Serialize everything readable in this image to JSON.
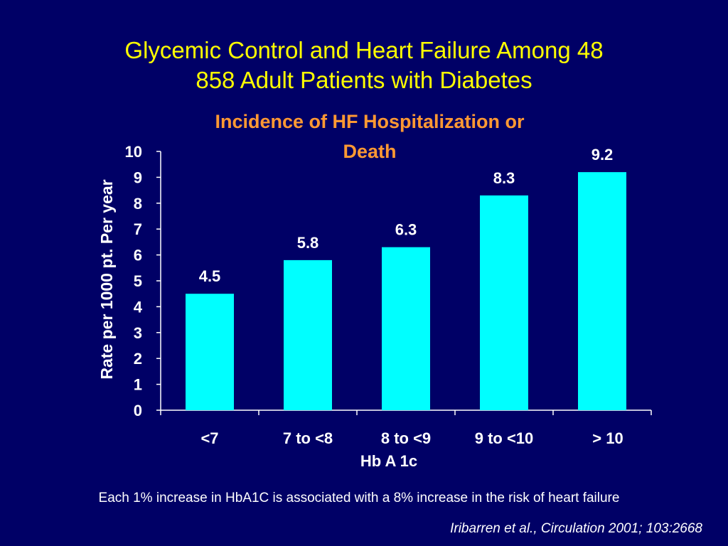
{
  "slide": {
    "title_line1": "Glycemic Control and Heart Failure Among 48",
    "title_line2": "858 Adult Patients with Diabetes",
    "footnote": "Each 1% increase in HbA1C is associated with a 8% increase in the risk of heart failure",
    "citation": "Iribarren et al., Circulation 2001; 103:2668"
  },
  "colors": {
    "background": "#000066",
    "title": "#ffff00",
    "chart_title": "#ff9933",
    "bar": "#00ffff",
    "text": "#ffffff"
  },
  "chart_data": {
    "type": "bar",
    "title": "Incidence of HF Hospitalization or Death",
    "title_lines": [
      "Incidence of HF Hospitalization or",
      "Death"
    ],
    "categories": [
      "<7",
      "7 to <8",
      "8 to <9",
      "9 to <10",
      "> 10"
    ],
    "values": [
      4.5,
      5.8,
      6.3,
      8.3,
      9.2
    ],
    "data_labels": [
      "4.5",
      "5.8",
      "6.3",
      "8.3",
      "9.2"
    ],
    "xlabel": "Hb A 1c",
    "ylabel": "Rate per 1000 pt. Per year",
    "ylim": [
      0,
      10
    ],
    "yticks": [
      "0",
      "1",
      "2",
      "3",
      "4",
      "5",
      "6",
      "7",
      "8",
      "9",
      "10"
    ],
    "grid": false,
    "legend": "none"
  }
}
